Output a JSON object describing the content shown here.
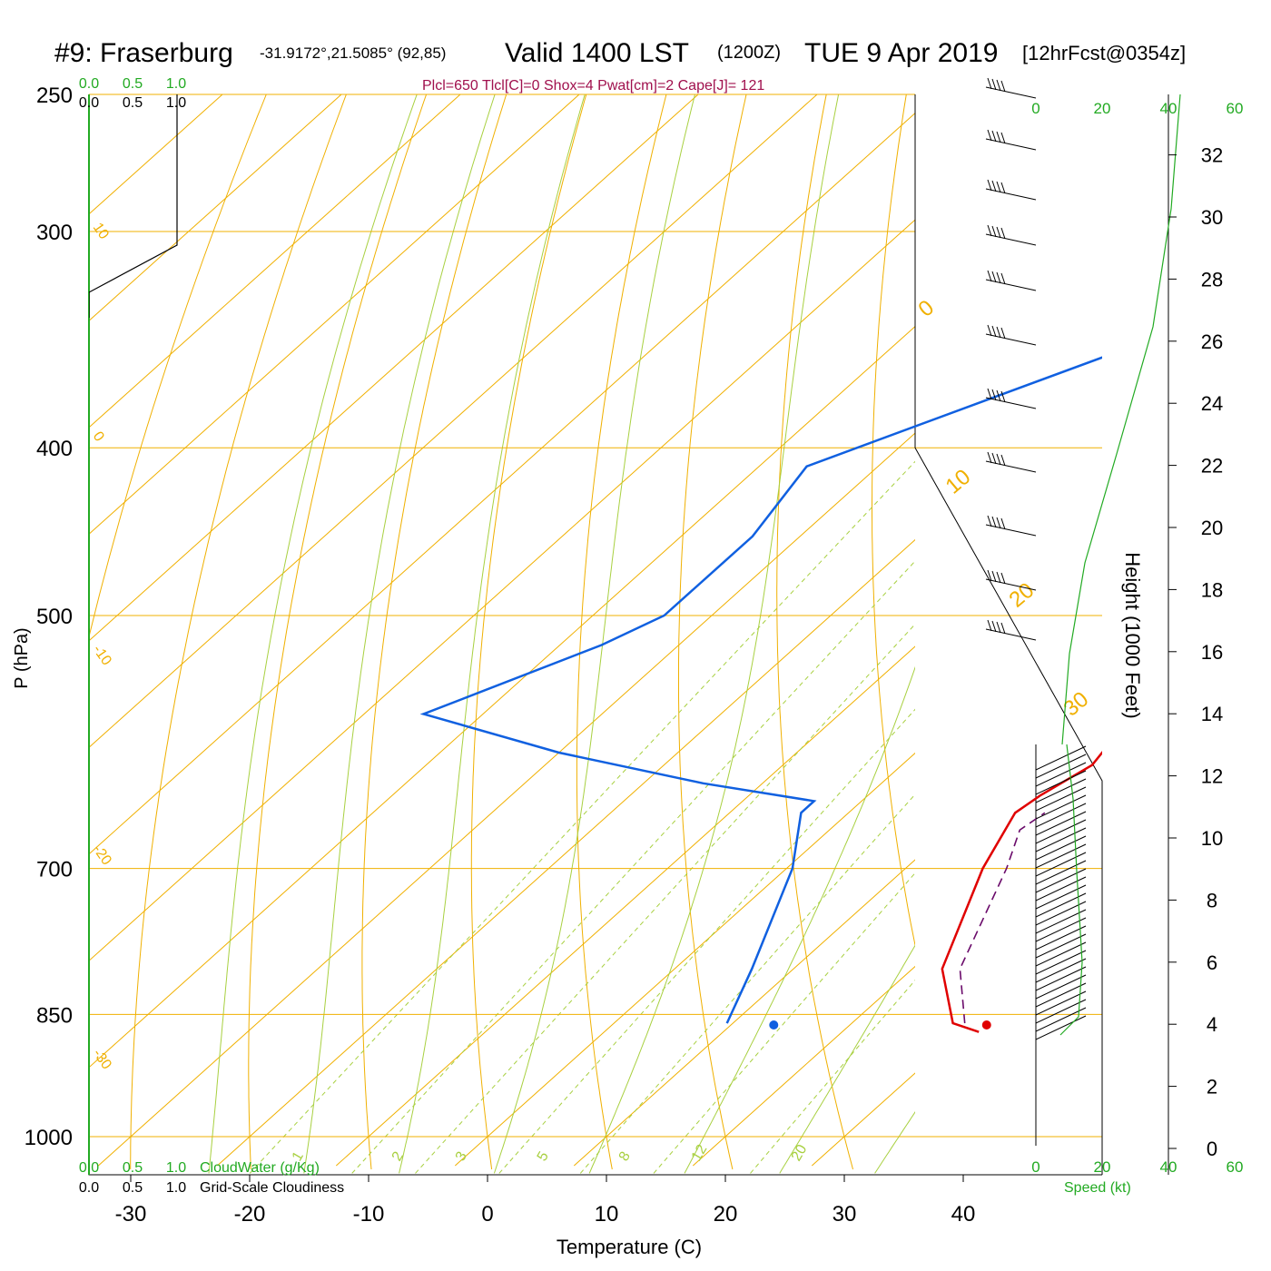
{
  "header": {
    "station": "#9: Fraserburg",
    "coords": "-31.9172°,21.5085° (92,85)",
    "valid": "Valid 1400 LST",
    "utc": "(1200Z)",
    "date": "TUE 9 Apr 2019",
    "forecast": "[12hrFcst@0354z]",
    "indices": "Plcl=650 Tlcl[C]=0 Shox=4 Pwat[cm]=2 Cape[J]= 121"
  },
  "colors": {
    "temperature": "#e00000",
    "dewpoint": "#1060e0",
    "parcel": "#6a0a6a",
    "isobar": "#f0b000",
    "dry_adiabat": "#a8d040",
    "mixing_ratio": "#a8d040",
    "cloud_axis": "#22aa22",
    "title_indices": "#a0104d"
  },
  "chart_data": {
    "type": "skew-t",
    "xlabel": "Temperature (C)",
    "ylabel": "P (hPa)",
    "right_label": "Height (1000 Feet)",
    "x_ticks": [
      "-30",
      "-20",
      "-10",
      "0",
      "10",
      "20",
      "30",
      "40"
    ],
    "p_ticks": [
      "250",
      "300",
      "400",
      "500",
      "700",
      "850",
      "1000"
    ],
    "height_ticks": [
      "0",
      "2",
      "4",
      "6",
      "8",
      "10",
      "12",
      "14",
      "16",
      "18",
      "20",
      "22",
      "24",
      "26",
      "28",
      "30",
      "32"
    ],
    "cloud_water_ticks": [
      "0.0",
      "0.5",
      "1.0"
    ],
    "cloudiness_ticks": [
      "0.0",
      "0.5",
      "1.0"
    ],
    "cloud_water_label": "CloudWater (g/Kg)",
    "cloudiness_label": "Grid-Scale Cloudiness",
    "speed_ticks": [
      "0",
      "20",
      "40",
      "60"
    ],
    "speed_label": "Speed (kt)",
    "isotherm_labels": [
      "10",
      "0",
      "-10",
      "-20",
      "-30",
      "0",
      "10",
      "20",
      "30"
    ],
    "mixing_ratio_labels": [
      "1",
      "2",
      "3",
      "5",
      "8",
      "12",
      "20"
    ],
    "temperature_profile": [
      {
        "p": 870,
        "t": 31.5
      },
      {
        "p": 860,
        "t": 28.5
      },
      {
        "p": 800,
        "t": 22.5
      },
      {
        "p": 700,
        "t": 16.5
      },
      {
        "p": 650,
        "t": 14.0
      },
      {
        "p": 635,
        "t": 14.5
      },
      {
        "p": 610,
        "t": 16.0
      },
      {
        "p": 580,
        "t": 15.0
      },
      {
        "p": 500,
        "t": 9.5
      },
      {
        "p": 400,
        "t": 0.0
      },
      {
        "p": 350,
        "t": -6.0
      },
      {
        "p": 300,
        "t": -13.0
      },
      {
        "p": 250,
        "t": -22.0
      }
    ],
    "dewpoint_profile": [
      {
        "p": 860,
        "dewpoint": 9.5
      },
      {
        "p": 800,
        "dewpoint": 6.5
      },
      {
        "p": 700,
        "dewpoint": 0.5
      },
      {
        "p": 650,
        "dewpoint": -4.0
      },
      {
        "p": 640,
        "dewpoint": -4.0
      },
      {
        "p": 625,
        "dewpoint": -15.0
      },
      {
        "p": 600,
        "dewpoint": -30.0
      },
      {
        "p": 570,
        "dewpoint": -45.0
      },
      {
        "p": 520,
        "dewpoint": -36.5
      },
      {
        "p": 500,
        "dewpoint": -34.0
      },
      {
        "p": 450,
        "dewpoint": -34.0
      },
      {
        "p": 410,
        "dewpoint": -36.0
      },
      {
        "p": 375,
        "dewpoint": -27.0
      },
      {
        "p": 350,
        "dewpoint": -20.0
      },
      {
        "p": 325,
        "dewpoint": -14.0
      },
      {
        "p": 305,
        "dewpoint": -13.0
      },
      {
        "p": 250,
        "dewpoint": -20.0
      }
    ],
    "parcel_profile": [
      {
        "p": 860,
        "t": 29.5
      },
      {
        "p": 800,
        "t": 24.0
      },
      {
        "p": 700,
        "t": 18.5
      },
      {
        "p": 665,
        "t": 16.0
      },
      {
        "p": 650,
        "t": 16.5
      }
    ],
    "surface_temperature": {
      "p": 862,
      "t": 31.5
    },
    "surface_dewpoint": {
      "p": 862,
      "dewpoint": 13.6
    },
    "xlim": [
      -35,
      45
    ],
    "ylim": [
      1050,
      250
    ],
    "log_pressure": true,
    "grid": true
  }
}
